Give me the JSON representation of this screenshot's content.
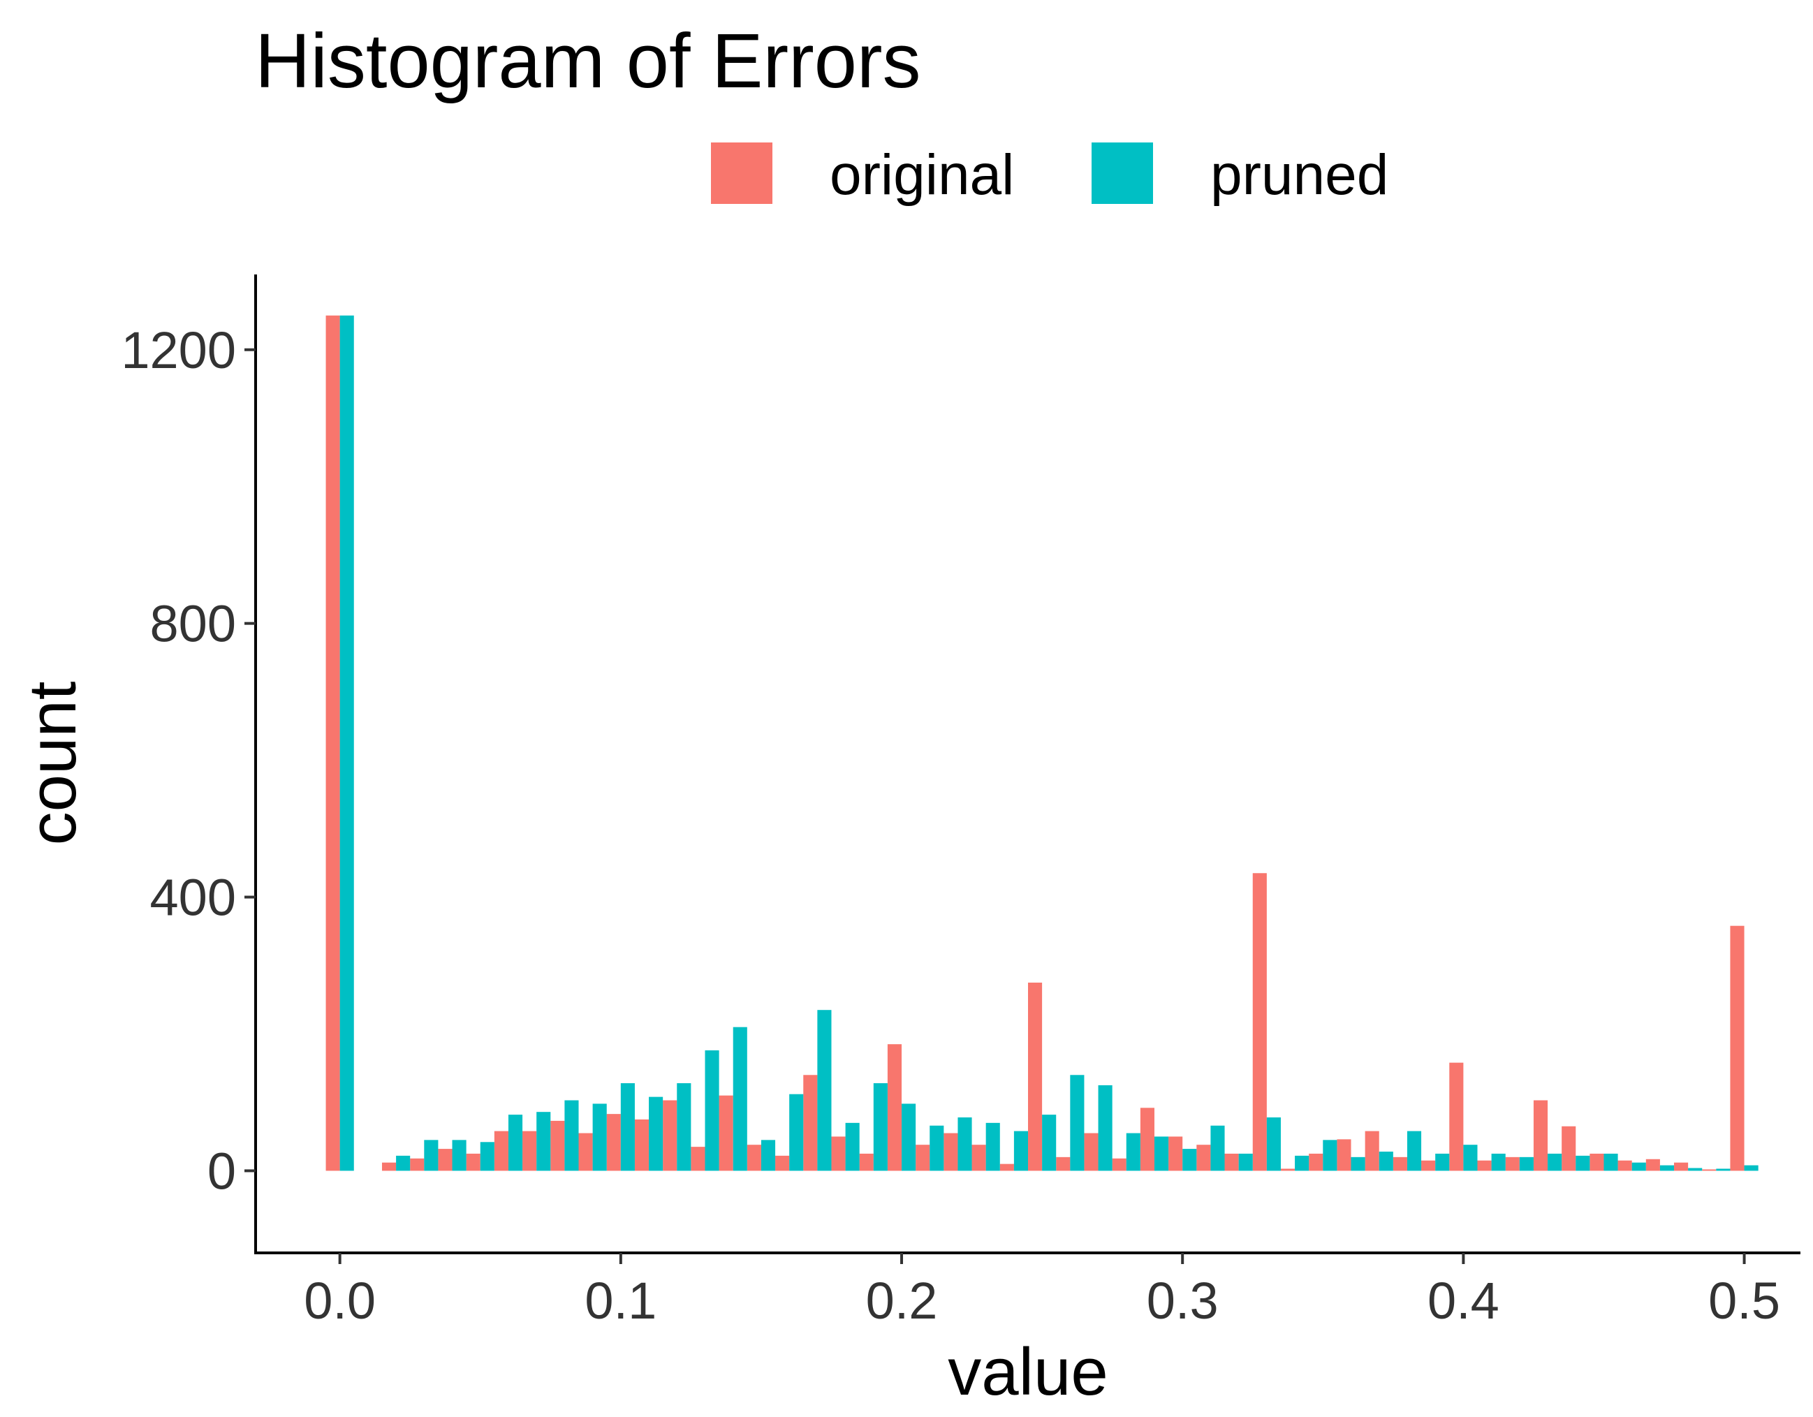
{
  "chart_data": {
    "type": "bar",
    "title": "Histogram of Errors",
    "xlabel": "value",
    "ylabel": "count",
    "xlim": [
      -0.03,
      0.52
    ],
    "ylim": [
      -120,
      1310
    ],
    "x_ticks": [
      "0.0",
      "0.1",
      "0.2",
      "0.3",
      "0.4",
      "0.5"
    ],
    "x_tick_values": [
      0,
      0.1,
      0.2,
      0.3,
      0.4,
      0.5
    ],
    "y_ticks": [
      "0",
      "400",
      "800",
      "1200"
    ],
    "y_tick_values": [
      0,
      400,
      800,
      1200
    ],
    "bin_width": 0.01,
    "legend_position": "top",
    "grid": false,
    "x": [
      0.0,
      0.02,
      0.03,
      0.04,
      0.05,
      0.06,
      0.07,
      0.08,
      0.09,
      0.1,
      0.11,
      0.12,
      0.13,
      0.14,
      0.15,
      0.16,
      0.17,
      0.18,
      0.19,
      0.2,
      0.21,
      0.22,
      0.23,
      0.24,
      0.25,
      0.26,
      0.27,
      0.28,
      0.29,
      0.3,
      0.31,
      0.32,
      0.33,
      0.34,
      0.35,
      0.36,
      0.37,
      0.38,
      0.39,
      0.4,
      0.41,
      0.42,
      0.43,
      0.44,
      0.45,
      0.46,
      0.47,
      0.48,
      0.49,
      0.5
    ],
    "series": [
      {
        "name": "original",
        "color": "#F8766D",
        "values": [
          1250,
          12,
          18,
          32,
          25,
          58,
          58,
          73,
          55,
          83,
          75,
          103,
          35,
          110,
          38,
          22,
          140,
          50,
          25,
          185,
          38,
          55,
          38,
          10,
          275,
          20,
          55,
          18,
          92,
          50,
          38,
          25,
          435,
          3,
          25,
          46,
          58,
          20,
          15,
          158,
          15,
          20,
          103,
          65,
          25,
          15,
          17,
          12,
          2,
          358
        ]
      },
      {
        "name": "pruned",
        "color": "#00BFC4",
        "values": [
          1250,
          22,
          45,
          45,
          42,
          82,
          86,
          103,
          98,
          128,
          108,
          128,
          176,
          210,
          45,
          112,
          235,
          70,
          128,
          98,
          66,
          78,
          70,
          58,
          82,
          140,
          125,
          55,
          50,
          32,
          66,
          25,
          78,
          22,
          45,
          20,
          28,
          58,
          25,
          38,
          25,
          20,
          25,
          22,
          25,
          12,
          8,
          4,
          3,
          8
        ]
      }
    ]
  }
}
